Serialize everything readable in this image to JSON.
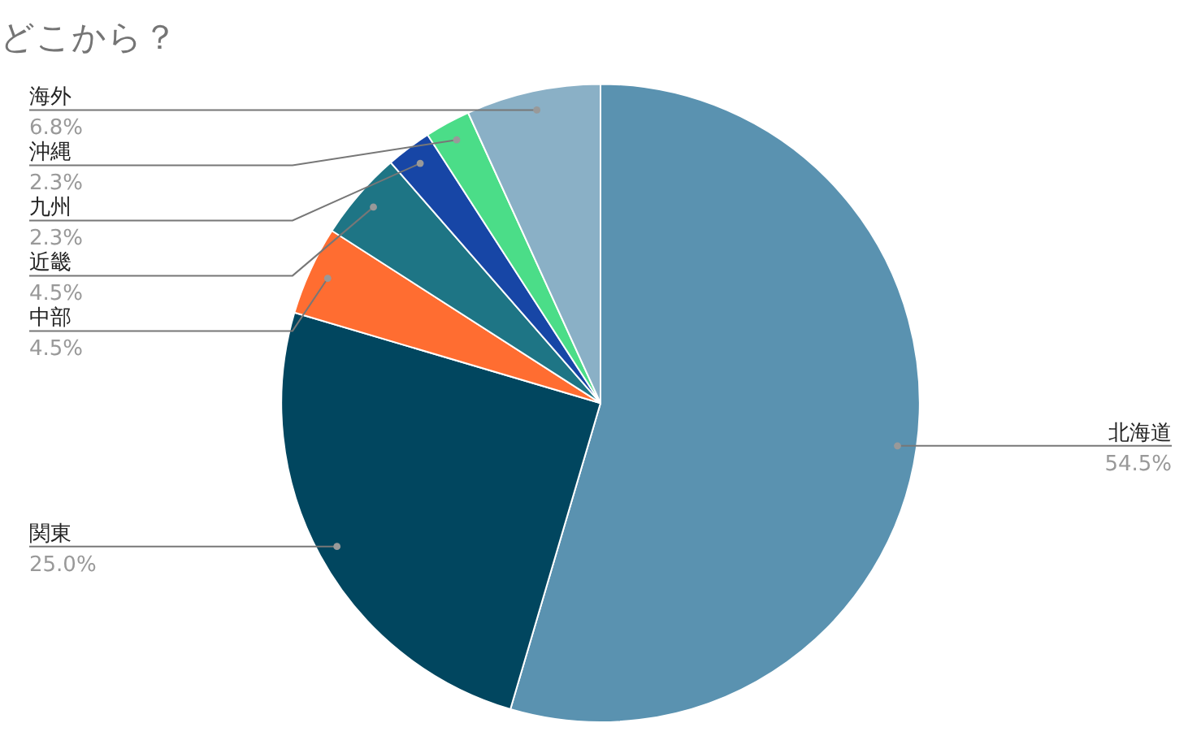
{
  "chart_data": {
    "type": "pie",
    "title": "どこから？",
    "categories": [
      "北海道",
      "関東",
      "中部",
      "近畿",
      "九州",
      "沖縄",
      "海外"
    ],
    "values": [
      54.5,
      25.0,
      4.5,
      4.5,
      2.3,
      2.3,
      6.8
    ],
    "value_labels": [
      "54.5%",
      "25.0%",
      "4.5%",
      "4.5%",
      "2.3%",
      "2.3%",
      "6.8%"
    ],
    "colors": [
      "#5a92b0",
      "#01465f",
      "#ff6d31",
      "#1e7585",
      "#1746a6",
      "#4bdd88",
      "#8ab0c6"
    ],
    "legend": false
  }
}
